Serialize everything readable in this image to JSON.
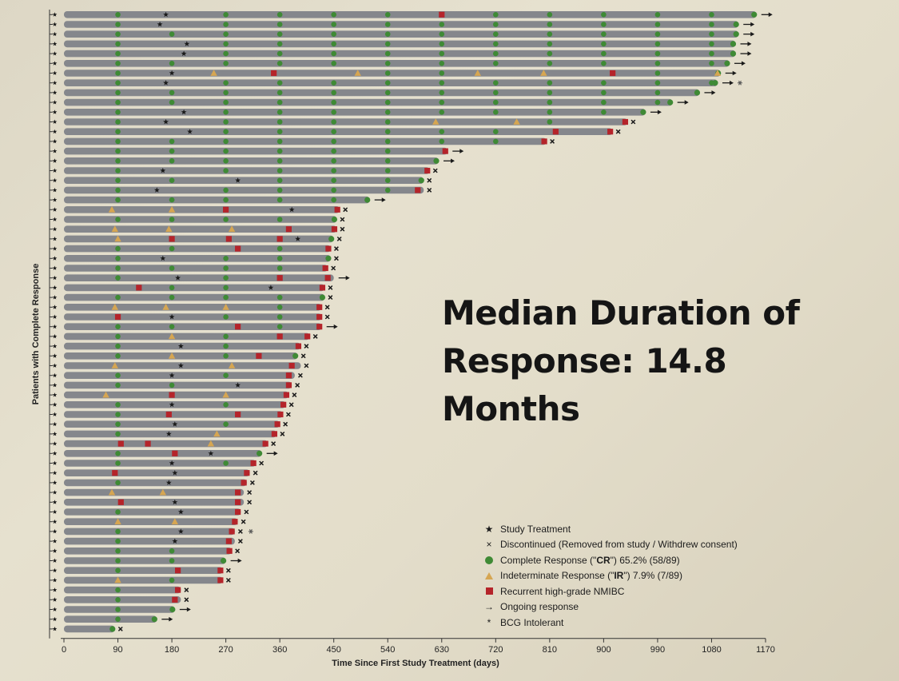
{
  "headline": {
    "line1": "Median Duration of",
    "line2": "Response: 14.8 Months"
  },
  "colors": {
    "bar": "#85878c",
    "complete_response": "#3f8a35",
    "indeterminate_response": "#d6a652",
    "recurrent": "#b5242a",
    "marker": "#1a1a1a"
  },
  "legend": [
    {
      "symbol": "★",
      "icon": "star-icon",
      "label": "Study Treatment"
    },
    {
      "symbol": "×",
      "icon": "x-icon",
      "label": "Discontinued (Removed from study / Withdrew consent)"
    },
    {
      "symbol": "circle",
      "icon": "green-circle-icon",
      "label_pre": "Complete Response (\"",
      "label_bold": "CR",
      "label_post": "\") 65.2% (58/89)"
    },
    {
      "symbol": "triangle",
      "icon": "orange-triangle-icon",
      "label_pre": "Indeterminate Response (\"",
      "label_bold": "IR",
      "label_post": "\") 7.9% (7/89)"
    },
    {
      "symbol": "square",
      "icon": "red-square-icon",
      "label": "Recurrent high-grade NMIBC"
    },
    {
      "symbol": "→",
      "icon": "arrow-icon",
      "label": "Ongoing response"
    },
    {
      "symbol": "*",
      "icon": "asterisk-icon",
      "label": "BCG Intolerant"
    }
  ],
  "chart_data": {
    "type": "swimmer",
    "xlabel": "Time Since First Study Treatment (days)",
    "ylabel": "Patients with Complete Response",
    "xlim": [
      0,
      1170
    ],
    "xticks": [
      0,
      90,
      180,
      270,
      360,
      450,
      540,
      630,
      720,
      810,
      900,
      990,
      1080,
      1170
    ],
    "assessment_interval_days": 90,
    "rows": [
      {
        "end": 1155,
        "outcome": "ongoing",
        "extras": [
          [
            170,
            "star"
          ],
          [
            630,
            "square"
          ]
        ]
      },
      {
        "end": 1125,
        "outcome": "ongoing",
        "extras": [
          [
            160,
            "star"
          ]
        ]
      },
      {
        "end": 1125,
        "outcome": "ongoing",
        "extras": []
      },
      {
        "end": 1120,
        "outcome": "ongoing",
        "extras": [
          [
            205,
            "star"
          ]
        ]
      },
      {
        "end": 1120,
        "outcome": "ongoing",
        "extras": [
          [
            200,
            "star"
          ]
        ]
      },
      {
        "end": 1110,
        "outcome": "ongoing",
        "extras": []
      },
      {
        "end": 1095,
        "outcome": "ongoing",
        "extras": [
          [
            180,
            "star"
          ],
          [
            250,
            "triangle"
          ],
          [
            350,
            "square"
          ],
          [
            490,
            "triangle"
          ],
          [
            690,
            "triangle"
          ],
          [
            800,
            "triangle"
          ],
          [
            915,
            "square"
          ],
          [
            1090,
            "triangle"
          ]
        ]
      },
      {
        "end": 1090,
        "outcome": "ongoing_bcg",
        "extras": [
          [
            170,
            "star"
          ]
        ]
      },
      {
        "end": 1060,
        "outcome": "ongoing",
        "extras": []
      },
      {
        "end": 1015,
        "outcome": "ongoing",
        "extras": []
      },
      {
        "end": 970,
        "outcome": "ongoing",
        "extras": [
          [
            200,
            "star"
          ]
        ]
      },
      {
        "end": 940,
        "outcome": "discontinued",
        "extras": [
          [
            170,
            "star"
          ],
          [
            620,
            "triangle"
          ],
          [
            755,
            "triangle"
          ],
          [
            940,
            "square"
          ]
        ]
      },
      {
        "end": 915,
        "outcome": "discontinued",
        "extras": [
          [
            210,
            "star"
          ],
          [
            820,
            "square"
          ],
          [
            915,
            "square"
          ]
        ]
      },
      {
        "end": 805,
        "outcome": "discontinued",
        "extras": [
          [
            810,
            "square"
          ]
        ]
      },
      {
        "end": 640,
        "outcome": "ongoing",
        "extras": [
          [
            640,
            "square"
          ]
        ]
      },
      {
        "end": 625,
        "outcome": "ongoing",
        "extras": []
      },
      {
        "end": 610,
        "outcome": "discontinued",
        "extras": [
          [
            165,
            "star"
          ],
          [
            610,
            "square"
          ]
        ]
      },
      {
        "end": 600,
        "outcome": "discontinued",
        "extras": [
          [
            290,
            "star"
          ]
        ]
      },
      {
        "end": 600,
        "outcome": "discontinued",
        "extras": [
          [
            155,
            "star"
          ],
          [
            590,
            "square"
          ]
        ]
      },
      {
        "end": 510,
        "outcome": "ongoing",
        "extras": []
      },
      {
        "end": 460,
        "outcome": "discontinued",
        "extras": [
          [
            80,
            "triangle"
          ],
          [
            180,
            "triangle"
          ],
          [
            270,
            "square"
          ],
          [
            380,
            "star"
          ],
          [
            460,
            "square"
          ]
        ]
      },
      {
        "end": 455,
        "outcome": "discontinued",
        "extras": []
      },
      {
        "end": 455,
        "outcome": "discontinued",
        "extras": [
          [
            85,
            "triangle"
          ],
          [
            175,
            "triangle"
          ],
          [
            280,
            "triangle"
          ],
          [
            375,
            "square"
          ],
          [
            455,
            "square"
          ]
        ]
      },
      {
        "end": 450,
        "outcome": "discontinued",
        "extras": [
          [
            90,
            "triangle"
          ],
          [
            180,
            "square"
          ],
          [
            275,
            "square"
          ],
          [
            360,
            "square"
          ],
          [
            390,
            "star"
          ]
        ]
      },
      {
        "end": 445,
        "outcome": "discontinued",
        "extras": [
          [
            290,
            "square"
          ],
          [
            445,
            "square"
          ]
        ]
      },
      {
        "end": 445,
        "outcome": "discontinued",
        "extras": [
          [
            165,
            "star"
          ]
        ]
      },
      {
        "end": 440,
        "outcome": "discontinued",
        "extras": [
          [
            445,
            "square"
          ]
        ]
      },
      {
        "end": 450,
        "outcome": "ongoing",
        "extras": [
          [
            190,
            "star"
          ],
          [
            360,
            "square"
          ],
          [
            440,
            "square"
          ]
        ]
      },
      {
        "end": 435,
        "outcome": "discontinued",
        "extras": [
          [
            125,
            "square"
          ],
          [
            345,
            "star"
          ],
          [
            440,
            "square"
          ]
        ]
      },
      {
        "end": 435,
        "outcome": "discontinued",
        "extras": []
      },
      {
        "end": 430,
        "outcome": "discontinued",
        "extras": [
          [
            85,
            "triangle"
          ],
          [
            170,
            "triangle"
          ],
          [
            270,
            "triangle"
          ],
          [
            435,
            "square"
          ]
        ]
      },
      {
        "end": 430,
        "outcome": "discontinued",
        "extras": [
          [
            90,
            "square"
          ],
          [
            180,
            "star"
          ],
          [
            435,
            "square"
          ]
        ]
      },
      {
        "end": 430,
        "outcome": "ongoing",
        "extras": [
          [
            290,
            "square"
          ],
          [
            430,
            "square"
          ]
        ]
      },
      {
        "end": 410,
        "outcome": "discontinued",
        "extras": [
          [
            180,
            "triangle"
          ],
          [
            360,
            "square"
          ],
          [
            410,
            "square"
          ]
        ]
      },
      {
        "end": 395,
        "outcome": "discontinued",
        "extras": [
          [
            195,
            "star"
          ],
          [
            395,
            "square"
          ]
        ]
      },
      {
        "end": 390,
        "outcome": "discontinued",
        "extras": [
          [
            180,
            "triangle"
          ],
          [
            325,
            "square"
          ]
        ]
      },
      {
        "end": 395,
        "outcome": "discontinued",
        "extras": [
          [
            85,
            "triangle"
          ],
          [
            195,
            "star"
          ],
          [
            280,
            "triangle"
          ],
          [
            380,
            "square"
          ]
        ]
      },
      {
        "end": 385,
        "outcome": "discontinued",
        "extras": [
          [
            180,
            "star"
          ],
          [
            375,
            "square"
          ]
        ]
      },
      {
        "end": 380,
        "outcome": "discontinued",
        "extras": [
          [
            290,
            "star"
          ],
          [
            375,
            "square"
          ]
        ]
      },
      {
        "end": 375,
        "outcome": "discontinued",
        "extras": [
          [
            70,
            "triangle"
          ],
          [
            180,
            "square"
          ],
          [
            270,
            "triangle"
          ],
          [
            375,
            "square"
          ]
        ]
      },
      {
        "end": 370,
        "outcome": "discontinued",
        "extras": [
          [
            180,
            "star"
          ],
          [
            370,
            "square"
          ]
        ]
      },
      {
        "end": 365,
        "outcome": "discontinued",
        "extras": [
          [
            175,
            "square"
          ],
          [
            290,
            "square"
          ],
          [
            365,
            "square"
          ]
        ]
      },
      {
        "end": 360,
        "outcome": "discontinued",
        "extras": [
          [
            185,
            "star"
          ],
          [
            360,
            "square"
          ]
        ]
      },
      {
        "end": 355,
        "outcome": "discontinued",
        "extras": [
          [
            175,
            "star"
          ],
          [
            255,
            "triangle"
          ],
          [
            355,
            "square"
          ]
        ]
      },
      {
        "end": 340,
        "outcome": "discontinued",
        "extras": [
          [
            95,
            "square"
          ],
          [
            140,
            "square"
          ],
          [
            245,
            "triangle"
          ],
          [
            340,
            "square"
          ]
        ]
      },
      {
        "end": 330,
        "outcome": "ongoing",
        "extras": [
          [
            185,
            "square"
          ],
          [
            245,
            "star"
          ]
        ]
      },
      {
        "end": 320,
        "outcome": "discontinued",
        "extras": [
          [
            180,
            "star"
          ],
          [
            320,
            "square"
          ]
        ]
      },
      {
        "end": 310,
        "outcome": "discontinued",
        "extras": [
          [
            85,
            "square"
          ],
          [
            185,
            "star"
          ],
          [
            305,
            "square"
          ]
        ]
      },
      {
        "end": 305,
        "outcome": "discontinued",
        "extras": [
          [
            175,
            "star"
          ],
          [
            300,
            "square"
          ]
        ]
      },
      {
        "end": 300,
        "outcome": "discontinued",
        "extras": [
          [
            80,
            "triangle"
          ],
          [
            165,
            "triangle"
          ],
          [
            290,
            "square"
          ]
        ]
      },
      {
        "end": 300,
        "outcome": "discontinued",
        "extras": [
          [
            95,
            "square"
          ],
          [
            185,
            "star"
          ],
          [
            290,
            "square"
          ]
        ]
      },
      {
        "end": 295,
        "outcome": "discontinued",
        "extras": [
          [
            195,
            "star"
          ],
          [
            290,
            "square"
          ]
        ]
      },
      {
        "end": 290,
        "outcome": "discontinued",
        "extras": [
          [
            90,
            "triangle"
          ],
          [
            185,
            "triangle"
          ],
          [
            285,
            "square"
          ]
        ]
      },
      {
        "end": 285,
        "outcome": "discontinued_bcg",
        "extras": [
          [
            195,
            "star"
          ],
          [
            280,
            "square"
          ]
        ]
      },
      {
        "end": 285,
        "outcome": "discontinued",
        "extras": [
          [
            185,
            "star"
          ],
          [
            275,
            "square"
          ]
        ]
      },
      {
        "end": 280,
        "outcome": "discontinued",
        "extras": [
          [
            280,
            "square"
          ]
        ]
      },
      {
        "end": 270,
        "outcome": "ongoing",
        "extras": []
      },
      {
        "end": 265,
        "outcome": "discontinued",
        "extras": [
          [
            190,
            "square"
          ],
          [
            265,
            "square"
          ]
        ]
      },
      {
        "end": 265,
        "outcome": "discontinued",
        "extras": [
          [
            90,
            "triangle"
          ],
          [
            265,
            "square"
          ]
        ]
      },
      {
        "end": 195,
        "outcome": "discontinued",
        "extras": [
          [
            190,
            "square"
          ]
        ]
      },
      {
        "end": 195,
        "outcome": "discontinued",
        "extras": [
          [
            185,
            "square"
          ]
        ]
      },
      {
        "end": 185,
        "outcome": "ongoing",
        "extras": []
      },
      {
        "end": 155,
        "outcome": "ongoing",
        "extras": []
      },
      {
        "end": 85,
        "outcome": "discontinued",
        "extras": []
      }
    ]
  }
}
